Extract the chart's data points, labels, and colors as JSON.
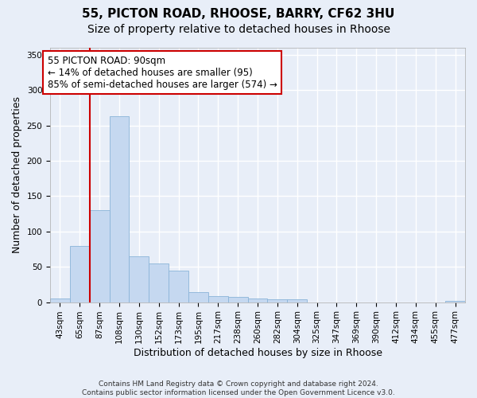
{
  "title_line1": "55, PICTON ROAD, RHOOSE, BARRY, CF62 3HU",
  "title_line2": "Size of property relative to detached houses in Rhoose",
  "xlabel": "Distribution of detached houses by size in Rhoose",
  "ylabel": "Number of detached properties",
  "footnote": "Contains HM Land Registry data © Crown copyright and database right 2024.\nContains public sector information licensed under the Open Government Licence v3.0.",
  "categories": [
    "43sqm",
    "65sqm",
    "87sqm",
    "108sqm",
    "130sqm",
    "152sqm",
    "173sqm",
    "195sqm",
    "217sqm",
    "238sqm",
    "260sqm",
    "282sqm",
    "304sqm",
    "325sqm",
    "347sqm",
    "369sqm",
    "390sqm",
    "412sqm",
    "434sqm",
    "455sqm",
    "477sqm"
  ],
  "values": [
    5,
    80,
    130,
    263,
    65,
    55,
    45,
    14,
    8,
    7,
    5,
    4,
    4,
    0,
    0,
    0,
    0,
    0,
    0,
    0,
    2
  ],
  "bar_color": "#c5d8f0",
  "bar_edge_color": "#8ab4d8",
  "vline_index": 2,
  "vline_color": "#cc0000",
  "annotation_text": "55 PICTON ROAD: 90sqm\n← 14% of detached houses are smaller (95)\n85% of semi-detached houses are larger (574) →",
  "ylim": [
    0,
    360
  ],
  "yticks": [
    0,
    50,
    100,
    150,
    200,
    250,
    300,
    350
  ],
  "background_color": "#e8eef8",
  "grid_color": "#ffffff",
  "title_fontsize": 11,
  "subtitle_fontsize": 10,
  "axis_label_fontsize": 9,
  "tick_fontsize": 7.5,
  "footnote_fontsize": 6.5
}
